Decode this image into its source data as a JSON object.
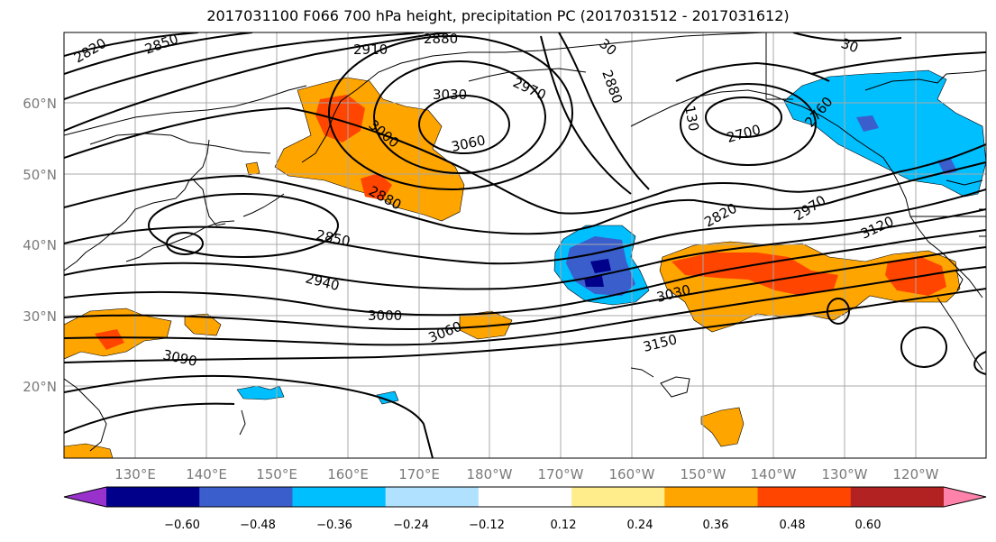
{
  "title": "2017031100 F066 700 hPa height, precipitation PC (2017031512 - 2017031612)",
  "latitude_labels": [
    "60°N",
    "50°N",
    "40°N",
    "30°N",
    "20°N"
  ],
  "longitude_labels": [
    "130°E",
    "140°E",
    "150°E",
    "160°E",
    "170°E",
    "180°W",
    "170°W",
    "160°W",
    "150°W",
    "140°W",
    "130°W",
    "120°W"
  ],
  "colorbar": {
    "colors": [
      "#9932cc",
      "#00008b",
      "#3a5fcd",
      "#00bfff",
      "#b0e2ff",
      "#ffffff",
      "#ffec8b",
      "#ffa500",
      "#ff4500",
      "#b22222",
      "#ff82ab"
    ],
    "tick_labels": [
      "−0.60",
      "−0.48",
      "−0.36",
      "−0.24",
      "−0.12",
      "0.12",
      "0.24",
      "0.36",
      "0.48",
      "0.60"
    ]
  },
  "contour_labels": [
    "2820",
    "2850",
    "2910",
    "2880",
    "30",
    "30",
    "3030",
    "2970",
    "2880",
    "3060",
    "3000",
    "2760",
    "130",
    "2700",
    "2880",
    "2850",
    "2820",
    "2970",
    "3120",
    "2940",
    "3030",
    "3000",
    "3060",
    "3150",
    "3090"
  ]
}
